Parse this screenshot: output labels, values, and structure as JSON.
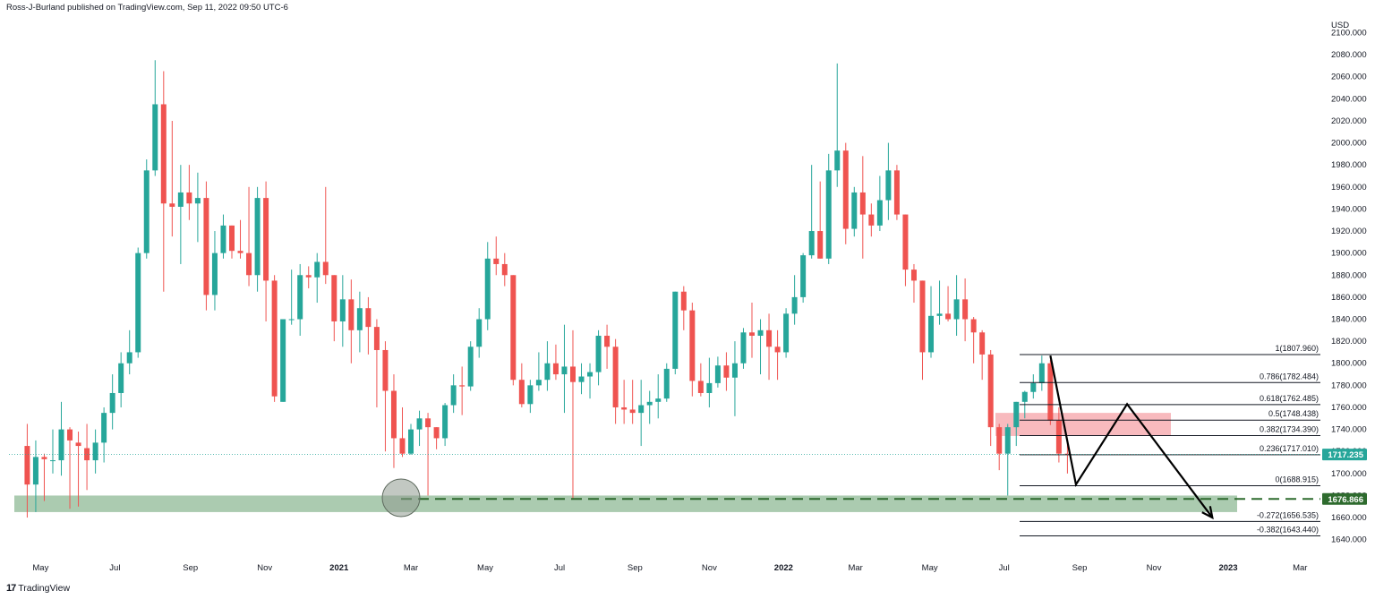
{
  "header": {
    "attribution": "Ross-J-Burland published on TradingView.com, Sep 11, 2022 09:50 UTC-6"
  },
  "footer": {
    "brand": "TradingView",
    "logo_glyph": "17"
  },
  "colors": {
    "up": "#26a69a",
    "down": "#ef5350",
    "support_zone": "#8fb996",
    "resistance_zone": "#f5a3a8",
    "support_line": "#2e6b2e",
    "last_price_bg": "#26a69a",
    "support_label_bg": "#2e6b2e"
  },
  "chart_data": {
    "type": "candlestick",
    "timeframe": "weekly",
    "currency": "USD",
    "y_axis_unit": "USD",
    "ylim": [
      1630,
      2115
    ],
    "y_ticks": [
      1640,
      1660,
      1680,
      1700,
      1720,
      1740,
      1760,
      1780,
      1800,
      1820,
      1840,
      1860,
      1880,
      1900,
      1920,
      1940,
      1960,
      1980,
      2000,
      2020,
      2040,
      2060,
      2080,
      2100
    ],
    "x_ticks": [
      "May",
      "Jul",
      "Sep",
      "Nov",
      "2021",
      "Mar",
      "May",
      "Jul",
      "Sep",
      "Nov",
      "2022",
      "Mar",
      "May",
      "Jul",
      "Sep",
      "Nov",
      "2023",
      "Mar"
    ],
    "first_candle": "2020-04-20",
    "candles": [
      [
        1725,
        1745,
        1660,
        1690
      ],
      [
        1690,
        1730,
        1665,
        1715
      ],
      [
        1715,
        1718,
        1675,
        1713
      ],
      [
        1712,
        1740,
        1700,
        1712
      ],
      [
        1712,
        1765,
        1698,
        1740
      ],
      [
        1740,
        1742,
        1668,
        1730
      ],
      [
        1728,
        1738,
        1670,
        1725
      ],
      [
        1723,
        1745,
        1685,
        1712
      ],
      [
        1712,
        1740,
        1700,
        1728
      ],
      [
        1728,
        1760,
        1710,
        1755
      ],
      [
        1755,
        1790,
        1740,
        1773
      ],
      [
        1773,
        1810,
        1760,
        1800
      ],
      [
        1800,
        1830,
        1790,
        1810
      ],
      [
        1810,
        1905,
        1805,
        1900
      ],
      [
        1900,
        1985,
        1895,
        1975
      ],
      [
        1975,
        2075,
        1970,
        2035
      ],
      [
        2035,
        2065,
        1865,
        1945
      ],
      [
        1945,
        2020,
        1915,
        1942
      ],
      [
        1942,
        1980,
        1890,
        1955
      ],
      [
        1955,
        1980,
        1930,
        1945
      ],
      [
        1945,
        1973,
        1910,
        1950
      ],
      [
        1950,
        1965,
        1848,
        1862
      ],
      [
        1862,
        1920,
        1848,
        1900
      ],
      [
        1900,
        1935,
        1895,
        1925
      ],
      [
        1925,
        1925,
        1895,
        1902
      ],
      [
        1902,
        1930,
        1895,
        1900
      ],
      [
        1900,
        1960,
        1870,
        1880
      ],
      [
        1880,
        1960,
        1865,
        1950
      ],
      [
        1950,
        1965,
        1838,
        1875
      ],
      [
        1875,
        1880,
        1765,
        1770
      ],
      [
        1765,
        1840,
        1765,
        1840
      ],
      [
        1840,
        1885,
        1835,
        1840
      ],
      [
        1840,
        1890,
        1825,
        1880
      ],
      [
        1880,
        1888,
        1868,
        1878
      ],
      [
        1878,
        1900,
        1855,
        1892
      ],
      [
        1892,
        1960,
        1872,
        1880
      ],
      [
        1880,
        1880,
        1820,
        1838
      ],
      [
        1838,
        1880,
        1815,
        1858
      ],
      [
        1858,
        1876,
        1800,
        1830
      ],
      [
        1830,
        1865,
        1810,
        1850
      ],
      [
        1850,
        1860,
        1808,
        1833
      ],
      [
        1833,
        1840,
        1760,
        1812
      ],
      [
        1812,
        1820,
        1720,
        1775
      ],
      [
        1775,
        1790,
        1705,
        1732
      ],
      [
        1732,
        1760,
        1715,
        1718
      ],
      [
        1718,
        1745,
        1717,
        1740
      ],
      [
        1740,
        1757,
        1725,
        1750
      ],
      [
        1750,
        1755,
        1680,
        1742
      ],
      [
        1742,
        1742,
        1722,
        1732
      ],
      [
        1732,
        1764,
        1725,
        1762
      ],
      [
        1762,
        1790,
        1755,
        1780
      ],
      [
        1780,
        1797,
        1753,
        1779
      ],
      [
        1779,
        1820,
        1775,
        1815
      ],
      [
        1815,
        1850,
        1805,
        1840
      ],
      [
        1840,
        1910,
        1830,
        1895
      ],
      [
        1895,
        1915,
        1880,
        1890
      ],
      [
        1890,
        1900,
        1870,
        1880
      ],
      [
        1880,
        1880,
        1780,
        1785
      ],
      [
        1785,
        1800,
        1760,
        1763
      ],
      [
        1763,
        1785,
        1755,
        1780
      ],
      [
        1780,
        1810,
        1775,
        1785
      ],
      [
        1785,
        1820,
        1775,
        1800
      ],
      [
        1800,
        1817,
        1785,
        1790
      ],
      [
        1790,
        1835,
        1755,
        1797
      ],
      [
        1797,
        1830,
        1677,
        1783
      ],
      [
        1783,
        1800,
        1772,
        1788
      ],
      [
        1788,
        1800,
        1768,
        1792
      ],
      [
        1792,
        1830,
        1780,
        1825
      ],
      [
        1825,
        1835,
        1795,
        1815
      ],
      [
        1815,
        1822,
        1745,
        1760
      ],
      [
        1760,
        1785,
        1745,
        1758
      ],
      [
        1758,
        1785,
        1745,
        1755
      ],
      [
        1755,
        1785,
        1725,
        1762
      ],
      [
        1762,
        1775,
        1745,
        1765
      ],
      [
        1765,
        1790,
        1750,
        1768
      ],
      [
        1768,
        1800,
        1765,
        1795
      ],
      [
        1795,
        1865,
        1790,
        1865
      ],
      [
        1865,
        1870,
        1830,
        1848
      ],
      [
        1848,
        1855,
        1770,
        1784
      ],
      [
        1784,
        1800,
        1770,
        1773
      ],
      [
        1773,
        1805,
        1760,
        1782
      ],
      [
        1782,
        1806,
        1778,
        1798
      ],
      [
        1798,
        1810,
        1775,
        1787
      ],
      [
        1787,
        1820,
        1752,
        1800
      ],
      [
        1800,
        1832,
        1795,
        1828
      ],
      [
        1828,
        1855,
        1805,
        1825
      ],
      [
        1825,
        1840,
        1790,
        1830
      ],
      [
        1830,
        1845,
        1785,
        1815
      ],
      [
        1815,
        1830,
        1785,
        1810
      ],
      [
        1810,
        1850,
        1805,
        1845
      ],
      [
        1845,
        1880,
        1835,
        1860
      ],
      [
        1860,
        1900,
        1855,
        1898
      ],
      [
        1898,
        1980,
        1895,
        1920
      ],
      [
        1920,
        1965,
        1895,
        1895
      ],
      [
        1895,
        1990,
        1890,
        1975
      ],
      [
        1975,
        2072,
        1960,
        1993
      ],
      [
        1993,
        2000,
        1908,
        1922
      ],
      [
        1922,
        1960,
        1915,
        1955
      ],
      [
        1955,
        1988,
        1895,
        1935
      ],
      [
        1935,
        1945,
        1915,
        1925
      ],
      [
        1925,
        1970,
        1920,
        1948
      ],
      [
        1948,
        2000,
        1930,
        1975
      ],
      [
        1975,
        1980,
        1930,
        1935
      ],
      [
        1935,
        1935,
        1870,
        1885
      ],
      [
        1885,
        1890,
        1855,
        1875
      ],
      [
        1875,
        1875,
        1785,
        1810
      ],
      [
        1810,
        1870,
        1805,
        1843
      ],
      [
        1843,
        1875,
        1835,
        1845
      ],
      [
        1845,
        1870,
        1838,
        1840
      ],
      [
        1840,
        1880,
        1825,
        1858
      ],
      [
        1858,
        1877,
        1820,
        1840
      ],
      [
        1840,
        1842,
        1800,
        1828
      ],
      [
        1828,
        1830,
        1785,
        1808
      ],
      [
        1808,
        1812,
        1725,
        1742
      ],
      [
        1742,
        1745,
        1703,
        1718
      ],
      [
        1718,
        1745,
        1680,
        1742
      ],
      [
        1742,
        1765,
        1725,
        1765
      ],
      [
        1765,
        1775,
        1750,
        1774
      ],
      [
        1774,
        1790,
        1768,
        1782
      ],
      [
        1782,
        1807,
        1775,
        1800
      ],
      [
        1800,
        1803,
        1744,
        1748
      ],
      [
        1748,
        1760,
        1710,
        1718
      ],
      [
        1718,
        1730,
        1700,
        1717.2
      ]
    ],
    "last_price": {
      "value": "1717.235"
    },
    "support_level": {
      "value": "1676.866"
    },
    "support_zone": {
      "from": 1665,
      "to": 1680
    },
    "resistance_zone": {
      "from": 1734,
      "to": 1755
    },
    "fibonacci": [
      {
        "ratio": "1",
        "price": "1807.960"
      },
      {
        "ratio": "0.786",
        "price": "1782.484"
      },
      {
        "ratio": "0.618",
        "price": "1762.485"
      },
      {
        "ratio": "0.5",
        "price": "1748.438"
      },
      {
        "ratio": "0.382",
        "price": "1734.390"
      },
      {
        "ratio": "0.236",
        "price": "1717.010"
      },
      {
        "ratio": "0",
        "price": "1688.915"
      },
      {
        "ratio": "-0.272",
        "price": "1656.535"
      },
      {
        "ratio": "-0.382",
        "price": "1643.440"
      }
    ],
    "projection_path": [
      [
        "2022-08-08",
        1807
      ],
      [
        "2022-08-29",
        1690
      ],
      [
        "2022-10-10",
        1763
      ],
      [
        "2022-12-19",
        1660
      ]
    ],
    "annotations": [
      "circle at support near 2021-03",
      "arrow projecting lower"
    ],
    "grid": false,
    "legend": "none"
  }
}
